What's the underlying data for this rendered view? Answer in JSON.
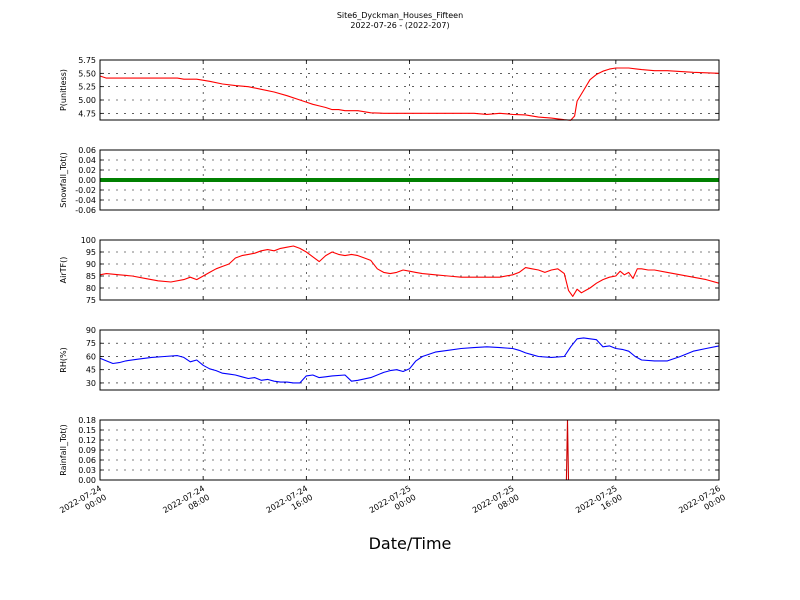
{
  "figure": {
    "title_line1": "Site6_Dyckman_Houses_Fifteen",
    "title_line2": "2022-07-26 - (2022-207)"
  },
  "chart_data": {
    "type": "line",
    "xlabel": "Date/Time",
    "x_range": [
      "2022-07-24 00:00",
      "2022-07-26 00:00"
    ],
    "x_ticks": [
      {
        "at": "2022-07-24 00:00",
        "line1": "2022-07-24",
        "line2": "00:00"
      },
      {
        "at": "2022-07-24 08:00",
        "line1": "2022-07-24",
        "line2": "08:00"
      },
      {
        "at": "2022-07-24 16:00",
        "line1": "2022-07-24",
        "line2": "16:00"
      },
      {
        "at": "2022-07-25 00:00",
        "line1": "2022-07-25",
        "line2": "00:00"
      },
      {
        "at": "2022-07-25 08:00",
        "line1": "2022-07-25",
        "line2": "08:00"
      },
      {
        "at": "2022-07-25 16:00",
        "line1": "2022-07-25",
        "line2": "16:00"
      },
      {
        "at": "2022-07-26 00:00",
        "line1": "2022-07-26",
        "line2": "00:00"
      }
    ],
    "grid": true,
    "panels": [
      {
        "ylabel": "P(unitless)",
        "ylim": [
          4.625,
          5.75
        ],
        "yticks": [
          "5.75",
          "5.50",
          "5.25",
          "5.00",
          "4.75"
        ],
        "yticks_values": [
          5.75,
          5.5,
          5.25,
          5.0,
          4.75
        ],
        "color": "#ff0000",
        "data": [
          [
            "2022-07-24 00:00",
            5.45
          ],
          [
            "2022-07-24 00:30",
            5.41
          ],
          [
            "2022-07-24 02:00",
            5.41
          ],
          [
            "2022-07-24 04:00",
            5.41
          ],
          [
            "2022-07-24 06:00",
            5.41
          ],
          [
            "2022-07-24 06:30",
            5.39
          ],
          [
            "2022-07-24 07:30",
            5.39
          ],
          [
            "2022-07-24 08:30",
            5.35
          ],
          [
            "2022-07-24 09:30",
            5.3
          ],
          [
            "2022-07-24 10:30",
            5.27
          ],
          [
            "2022-07-24 11:30",
            5.25
          ],
          [
            "2022-07-24 12:30",
            5.2
          ],
          [
            "2022-07-24 13:30",
            5.15
          ],
          [
            "2022-07-24 14:30",
            5.08
          ],
          [
            "2022-07-24 15:30",
            5.0
          ],
          [
            "2022-07-24 16:00",
            4.96
          ],
          [
            "2022-07-24 16:30",
            4.92
          ],
          [
            "2022-07-24 17:00",
            4.89
          ],
          [
            "2022-07-24 17:30",
            4.86
          ],
          [
            "2022-07-24 18:00",
            4.82
          ],
          [
            "2022-07-24 18:30",
            4.82
          ],
          [
            "2022-07-24 19:00",
            4.8
          ],
          [
            "2022-07-24 20:00",
            4.8
          ],
          [
            "2022-07-24 21:00",
            4.76
          ],
          [
            "2022-07-24 22:00",
            4.75
          ],
          [
            "2022-07-25 00:00",
            4.75
          ],
          [
            "2022-07-25 02:00",
            4.75
          ],
          [
            "2022-07-25 04:00",
            4.75
          ],
          [
            "2022-07-25 05:00",
            4.75
          ],
          [
            "2022-07-25 06:00",
            4.73
          ],
          [
            "2022-07-25 07:00",
            4.75
          ],
          [
            "2022-07-25 08:00",
            4.73
          ],
          [
            "2022-07-25 09:00",
            4.72
          ],
          [
            "2022-07-25 10:00",
            4.68
          ],
          [
            "2022-07-25 11:00",
            4.66
          ],
          [
            "2022-07-25 12:00",
            4.63
          ],
          [
            "2022-07-25 12:30",
            4.62
          ],
          [
            "2022-07-25 12:48",
            4.7
          ],
          [
            "2022-07-25 13:00",
            4.98
          ],
          [
            "2022-07-25 13:30",
            5.18
          ],
          [
            "2022-07-25 14:00",
            5.38
          ],
          [
            "2022-07-25 14:30",
            5.48
          ],
          [
            "2022-07-25 15:00",
            5.54
          ],
          [
            "2022-07-25 15:30",
            5.58
          ],
          [
            "2022-07-25 16:00",
            5.6
          ],
          [
            "2022-07-25 17:00",
            5.6
          ],
          [
            "2022-07-25 18:00",
            5.57
          ],
          [
            "2022-07-25 19:00",
            5.55
          ],
          [
            "2022-07-25 20:00",
            5.55
          ],
          [
            "2022-07-25 22:00",
            5.52
          ],
          [
            "2022-07-26 00:00",
            5.5
          ]
        ]
      },
      {
        "ylabel": "Snowfall_Tot()",
        "ylim": [
          -0.06,
          0.06
        ],
        "yticks": [
          "0.06",
          "0.04",
          "0.02",
          "0.00",
          "-0.02",
          "-0.04",
          "-0.06"
        ],
        "yticks_values": [
          0.06,
          0.04,
          0.02,
          0.0,
          -0.02,
          -0.04,
          -0.06
        ],
        "color": "#008000",
        "data": [
          [
            "2022-07-24 00:00",
            0.0
          ],
          [
            "2022-07-26 00:00",
            0.0
          ]
        ]
      },
      {
        "ylabel": "AirTF()",
        "ylim": [
          75,
          100
        ],
        "yticks": [
          "100",
          "95",
          "90",
          "85",
          "80",
          "75"
        ],
        "yticks_values": [
          100,
          95,
          90,
          85,
          80,
          75
        ],
        "color": "#ff0000",
        "data": [
          [
            "2022-07-24 00:00",
            85.5
          ],
          [
            "2022-07-24 00:30",
            86.0
          ],
          [
            "2022-07-24 01:30",
            85.5
          ],
          [
            "2022-07-24 02:30",
            85.0
          ],
          [
            "2022-07-24 03:30",
            84.0
          ],
          [
            "2022-07-24 04:30",
            83.0
          ],
          [
            "2022-07-24 05:30",
            82.5
          ],
          [
            "2022-07-24 06:30",
            83.5
          ],
          [
            "2022-07-24 07:00",
            84.5
          ],
          [
            "2022-07-24 07:30",
            83.5
          ],
          [
            "2022-07-24 08:00",
            85.0
          ],
          [
            "2022-07-24 08:30",
            86.5
          ],
          [
            "2022-07-24 09:00",
            88.0
          ],
          [
            "2022-07-24 09:30",
            89.0
          ],
          [
            "2022-07-24 10:00",
            90.0
          ],
          [
            "2022-07-24 10:30",
            92.5
          ],
          [
            "2022-07-24 11:00",
            93.5
          ],
          [
            "2022-07-24 11:30",
            94.0
          ],
          [
            "2022-07-24 12:00",
            94.5
          ],
          [
            "2022-07-24 12:30",
            95.5
          ],
          [
            "2022-07-24 13:00",
            96.0
          ],
          [
            "2022-07-24 13:30",
            95.5
          ],
          [
            "2022-07-24 14:00",
            96.5
          ],
          [
            "2022-07-24 14:30",
            97.0
          ],
          [
            "2022-07-24 15:00",
            97.5
          ],
          [
            "2022-07-24 15:30",
            96.5
          ],
          [
            "2022-07-24 16:00",
            95.0
          ],
          [
            "2022-07-24 16:30",
            93.0
          ],
          [
            "2022-07-24 17:00",
            91.0
          ],
          [
            "2022-07-24 17:30",
            93.5
          ],
          [
            "2022-07-24 18:00",
            95.0
          ],
          [
            "2022-07-24 18:30",
            94.0
          ],
          [
            "2022-07-24 19:00",
            93.5
          ],
          [
            "2022-07-24 19:30",
            94.0
          ],
          [
            "2022-07-24 20:00",
            93.5
          ],
          [
            "2022-07-24 20:30",
            92.5
          ],
          [
            "2022-07-24 21:00",
            91.5
          ],
          [
            "2022-07-24 21:30",
            88.0
          ],
          [
            "2022-07-24 22:00",
            86.5
          ],
          [
            "2022-07-24 22:30",
            86.0
          ],
          [
            "2022-07-24 23:00",
            86.5
          ],
          [
            "2022-07-24 23:30",
            87.5
          ],
          [
            "2022-07-25 00:00",
            87.0
          ],
          [
            "2022-07-25 00:30",
            86.5
          ],
          [
            "2022-07-25 01:00",
            86.0
          ],
          [
            "2022-07-25 02:00",
            85.5
          ],
          [
            "2022-07-25 03:00",
            85.0
          ],
          [
            "2022-07-25 04:00",
            84.5
          ],
          [
            "2022-07-25 05:00",
            84.5
          ],
          [
            "2022-07-25 06:00",
            84.5
          ],
          [
            "2022-07-25 07:00",
            84.5
          ],
          [
            "2022-07-25 08:00",
            85.5
          ],
          [
            "2022-07-25 08:30",
            86.5
          ],
          [
            "2022-07-25 09:00",
            88.5
          ],
          [
            "2022-07-25 09:30",
            88.0
          ],
          [
            "2022-07-25 10:00",
            87.5
          ],
          [
            "2022-07-25 10:30",
            86.5
          ],
          [
            "2022-07-25 11:00",
            87.5
          ],
          [
            "2022-07-25 11:30",
            88.0
          ],
          [
            "2022-07-25 12:00",
            86.0
          ],
          [
            "2022-07-25 12:20",
            79.0
          ],
          [
            "2022-07-25 12:40",
            76.5
          ],
          [
            "2022-07-25 13:00",
            79.5
          ],
          [
            "2022-07-25 13:20",
            78.0
          ],
          [
            "2022-07-25 13:40",
            79.0
          ],
          [
            "2022-07-25 14:00",
            80.0
          ],
          [
            "2022-07-25 14:30",
            82.0
          ],
          [
            "2022-07-25 15:00",
            83.5
          ],
          [
            "2022-07-25 15:30",
            84.5
          ],
          [
            "2022-07-25 16:00",
            85.0
          ],
          [
            "2022-07-25 16:20",
            87.0
          ],
          [
            "2022-07-25 16:40",
            85.5
          ],
          [
            "2022-07-25 17:00",
            86.5
          ],
          [
            "2022-07-25 17:20",
            84.0
          ],
          [
            "2022-07-25 17:40",
            88.0
          ],
          [
            "2022-07-25 18:00",
            88.0
          ],
          [
            "2022-07-25 18:30",
            87.5
          ],
          [
            "2022-07-25 19:00",
            87.5
          ],
          [
            "2022-07-25 20:00",
            86.5
          ],
          [
            "2022-07-25 21:00",
            85.5
          ],
          [
            "2022-07-25 22:00",
            84.5
          ],
          [
            "2022-07-25 23:00",
            83.5
          ],
          [
            "2022-07-26 00:00",
            82.0
          ]
        ]
      },
      {
        "ylabel": "RH(%)",
        "ylim": [
          22,
          90
        ],
        "yticks": [
          "90",
          "75",
          "60",
          "45",
          "30"
        ],
        "yticks_values": [
          90,
          75,
          60,
          45,
          30
        ],
        "color": "#0000ff",
        "data": [
          [
            "2022-07-24 00:00",
            58
          ],
          [
            "2022-07-24 00:30",
            55
          ],
          [
            "2022-07-24 01:00",
            52
          ],
          [
            "2022-07-24 01:30",
            53
          ],
          [
            "2022-07-24 02:00",
            55
          ],
          [
            "2022-07-24 03:00",
            57
          ],
          [
            "2022-07-24 04:00",
            59
          ],
          [
            "2022-07-24 05:00",
            60
          ],
          [
            "2022-07-24 06:00",
            61
          ],
          [
            "2022-07-24 06:30",
            59
          ],
          [
            "2022-07-24 07:00",
            54
          ],
          [
            "2022-07-24 07:30",
            56
          ],
          [
            "2022-07-24 08:00",
            50
          ],
          [
            "2022-07-24 08:30",
            46
          ],
          [
            "2022-07-24 09:00",
            44
          ],
          [
            "2022-07-24 09:30",
            41
          ],
          [
            "2022-07-24 10:00",
            40
          ],
          [
            "2022-07-24 10:30",
            39
          ],
          [
            "2022-07-24 11:00",
            37
          ],
          [
            "2022-07-24 11:30",
            35
          ],
          [
            "2022-07-24 12:00",
            36
          ],
          [
            "2022-07-24 12:30",
            33
          ],
          [
            "2022-07-24 13:00",
            34
          ],
          [
            "2022-07-24 13:30",
            32
          ],
          [
            "2022-07-24 14:00",
            31
          ],
          [
            "2022-07-24 14:30",
            31
          ],
          [
            "2022-07-24 15:00",
            30
          ],
          [
            "2022-07-24 15:30",
            30
          ],
          [
            "2022-07-24 16:00",
            38
          ],
          [
            "2022-07-24 16:30",
            39
          ],
          [
            "2022-07-24 17:00",
            36
          ],
          [
            "2022-07-24 17:30",
            37
          ],
          [
            "2022-07-24 18:00",
            38
          ],
          [
            "2022-07-24 19:00",
            39
          ],
          [
            "2022-07-24 19:30",
            32
          ],
          [
            "2022-07-24 20:00",
            33
          ],
          [
            "2022-07-24 21:00",
            36
          ],
          [
            "2022-07-24 22:00",
            42
          ],
          [
            "2022-07-24 22:30",
            44
          ],
          [
            "2022-07-24 23:00",
            45
          ],
          [
            "2022-07-24 23:30",
            43
          ],
          [
            "2022-07-25 00:00",
            46
          ],
          [
            "2022-07-25 00:30",
            55
          ],
          [
            "2022-07-25 01:00",
            60
          ],
          [
            "2022-07-25 02:00",
            65
          ],
          [
            "2022-07-25 03:00",
            67
          ],
          [
            "2022-07-25 04:00",
            69
          ],
          [
            "2022-07-25 05:00",
            70
          ],
          [
            "2022-07-25 06:00",
            71
          ],
          [
            "2022-07-25 07:00",
            70
          ],
          [
            "2022-07-25 08:00",
            69
          ],
          [
            "2022-07-25 08:30",
            67
          ],
          [
            "2022-07-25 09:00",
            64
          ],
          [
            "2022-07-25 09:30",
            62
          ],
          [
            "2022-07-25 10:00",
            60
          ],
          [
            "2022-07-25 11:00",
            59
          ],
          [
            "2022-07-25 12:00",
            60
          ],
          [
            "2022-07-25 12:30",
            71
          ],
          [
            "2022-07-25 13:00",
            80
          ],
          [
            "2022-07-25 13:30",
            81
          ],
          [
            "2022-07-25 14:00",
            80
          ],
          [
            "2022-07-25 14:30",
            79
          ],
          [
            "2022-07-25 15:00",
            71
          ],
          [
            "2022-07-25 15:30",
            72
          ],
          [
            "2022-07-25 16:00",
            69
          ],
          [
            "2022-07-25 16:30",
            68
          ],
          [
            "2022-07-25 17:00",
            66
          ],
          [
            "2022-07-25 17:30",
            60
          ],
          [
            "2022-07-25 18:00",
            56
          ],
          [
            "2022-07-25 19:00",
            55
          ],
          [
            "2022-07-25 20:00",
            55
          ],
          [
            "2022-07-25 21:00",
            60
          ],
          [
            "2022-07-25 22:00",
            66
          ],
          [
            "2022-07-25 23:00",
            69
          ],
          [
            "2022-07-26 00:00",
            72
          ]
        ]
      },
      {
        "ylabel": "Rainfall_Tot()",
        "ylim": [
          0,
          0.18
        ],
        "yticks": [
          "0.18",
          "0.15",
          "0.12",
          "0.09",
          "0.06",
          "0.03",
          "0.00"
        ],
        "yticks_values": [
          0.18,
          0.15,
          0.12,
          0.09,
          0.06,
          0.03,
          0.0
        ],
        "color": "#cc0000",
        "data": [
          [
            "2022-07-24 00:00",
            0.0
          ],
          [
            "2022-07-25 12:00",
            0.0
          ],
          [
            "2022-07-25 12:10",
            0.0
          ],
          [
            "2022-07-25 12:15",
            0.18
          ],
          [
            "2022-07-25 12:20",
            0.0
          ],
          [
            "2022-07-26 00:00",
            0.0
          ]
        ]
      }
    ]
  }
}
